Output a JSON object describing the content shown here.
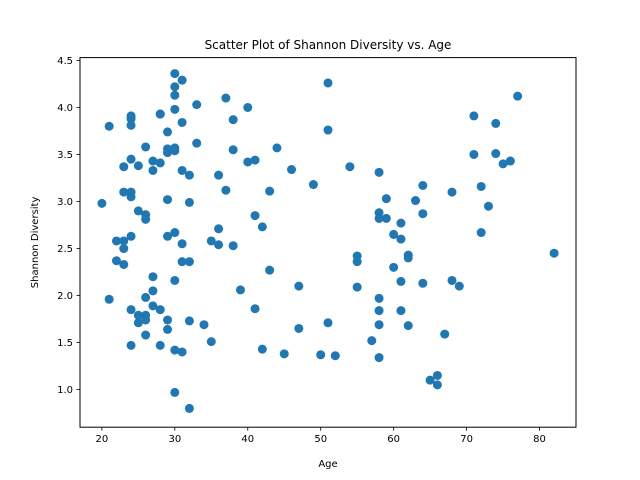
{
  "chart_data": {
    "type": "scatter",
    "title": "Scatter Plot of Shannon Diversity vs. Age",
    "xlabel": "Age",
    "ylabel": "Shannon Diversity",
    "xlim": [
      17.0,
      85.0
    ],
    "ylim": [
      0.6,
      4.53
    ],
    "xticks": [
      20,
      30,
      40,
      50,
      60,
      70,
      80
    ],
    "yticks": [
      1.0,
      1.5,
      2.0,
      2.5,
      3.0,
      3.5,
      4.0,
      4.5
    ],
    "grid": false,
    "legend": "none",
    "marker_color": "#1f77b4",
    "x": [
      20,
      21,
      21,
      22,
      22,
      23,
      23,
      23,
      23,
      23,
      24,
      24,
      24,
      24,
      24,
      24,
      24,
      24,
      24,
      25,
      25,
      25,
      25,
      26,
      26,
      26,
      26,
      26,
      26,
      26,
      27,
      27,
      27,
      27,
      27,
      28,
      28,
      28,
      28,
      28,
      29,
      29,
      29,
      29,
      29,
      29,
      29,
      30,
      30,
      30,
      30,
      30,
      30,
      30,
      30,
      30,
      30,
      31,
      31,
      31,
      31,
      31,
      31,
      32,
      32,
      32,
      32,
      32,
      33,
      33,
      34,
      35,
      35,
      36,
      36,
      36,
      37,
      37,
      38,
      38,
      38,
      39,
      40,
      40,
      41,
      41,
      41,
      42,
      42,
      43,
      43,
      44,
      45,
      46,
      47,
      47,
      49,
      50,
      51,
      51,
      51,
      52,
      54,
      55,
      55,
      55,
      57,
      58,
      58,
      58,
      58,
      58,
      58,
      58,
      59,
      59,
      60,
      60,
      61,
      61,
      61,
      61,
      62,
      62,
      62,
      63,
      64,
      64,
      64,
      65,
      66,
      66,
      67,
      68,
      68,
      69,
      71,
      71,
      72,
      72,
      73,
      74,
      74,
      75,
      76,
      77,
      82
    ],
    "y": [
      2.98,
      3.8,
      1.96,
      2.58,
      2.37,
      3.37,
      3.1,
      2.58,
      2.5,
      2.33,
      3.91,
      3.88,
      3.81,
      3.45,
      3.1,
      3.05,
      2.63,
      1.85,
      1.47,
      3.38,
      2.9,
      1.79,
      1.71,
      3.58,
      2.86,
      2.81,
      1.98,
      1.79,
      1.74,
      1.58,
      3.43,
      3.33,
      2.2,
      2.05,
      1.89,
      3.93,
      3.41,
      1.85,
      1.47,
      3.93,
      3.74,
      3.56,
      3.52,
      3.02,
      2.63,
      1.74,
      1.64,
      4.36,
      4.22,
      4.13,
      3.98,
      3.57,
      3.54,
      2.67,
      2.16,
      1.42,
      0.97,
      4.29,
      3.84,
      3.33,
      2.55,
      2.36,
      1.4,
      3.28,
      2.99,
      2.36,
      1.73,
      0.8,
      4.03,
      3.62,
      1.69,
      2.58,
      1.51,
      3.28,
      2.71,
      2.54,
      4.1,
      3.12,
      3.87,
      3.55,
      2.53,
      2.06,
      4.0,
      3.42,
      3.44,
      2.85,
      1.86,
      2.73,
      1.43,
      3.11,
      2.27,
      3.57,
      1.38,
      3.34,
      2.1,
      1.65,
      3.18,
      1.37,
      4.26,
      3.76,
      1.71,
      1.36,
      3.37,
      2.42,
      2.36,
      2.09,
      1.52,
      3.31,
      2.88,
      2.82,
      1.97,
      1.84,
      1.69,
      1.34,
      3.03,
      2.82,
      2.65,
      2.3,
      2.77,
      2.6,
      2.15,
      1.84,
      2.43,
      2.4,
      1.68,
      3.01,
      3.17,
      2.87,
      2.13,
      1.1,
      1.15,
      1.05,
      1.59,
      3.1,
      2.16,
      2.1,
      3.91,
      3.5,
      3.16,
      2.67,
      2.95,
      3.83,
      3.51,
      3.4,
      3.43,
      4.12,
      2.45
    ]
  }
}
